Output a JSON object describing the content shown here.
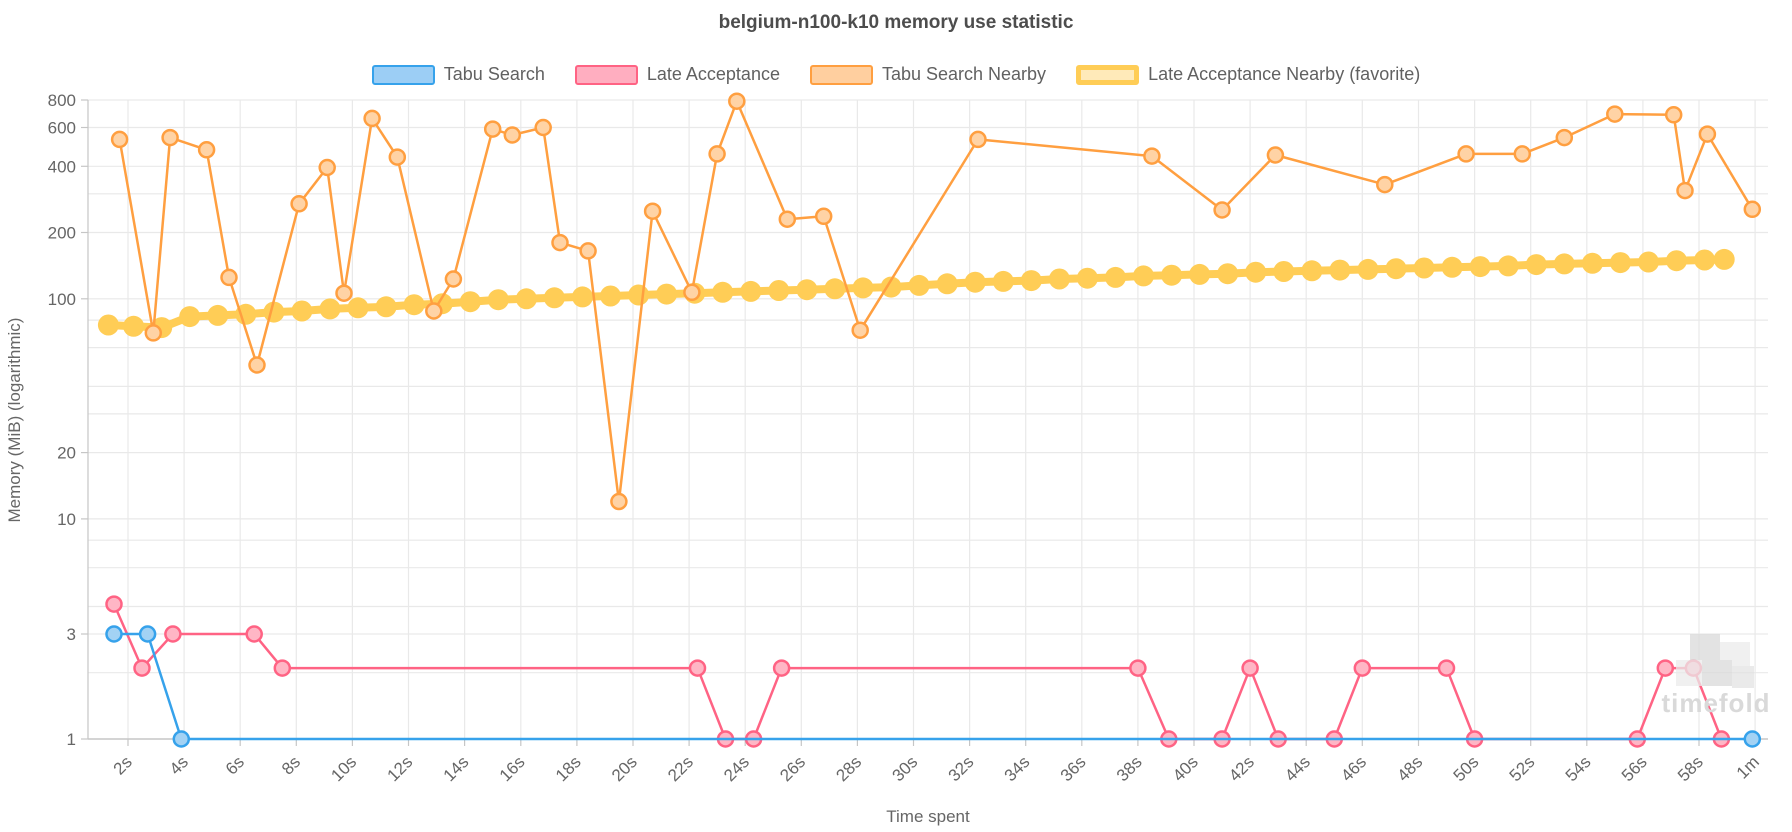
{
  "chart": {
    "title": "belgium-n100-k10 memory use statistic",
    "xlabel": "Time spent",
    "ylabel": "Memory (MiB) (logarithmic)",
    "watermark": "timefold"
  },
  "colors": {
    "grid": "#e9e9e9",
    "axis": "#c6c6c6",
    "tick_text": "#666666",
    "title_text": "#4d4d4d",
    "watermark_dark": "#d8d8d8",
    "watermark_light": "#e9e9e9"
  },
  "chart_data": {
    "type": "line",
    "title": "belgium-n100-k10 memory use statistic",
    "xlabel": "Time spent",
    "ylabel": "Memory (MiB) (logarithmic)",
    "y_scale": "logarithmic",
    "legend_position": "top",
    "x_range": [
      0.574,
      60.46
    ],
    "y_range": [
      1,
      800
    ],
    "x_ticks": [
      {
        "t": 2,
        "label": "2s"
      },
      {
        "t": 4,
        "label": "4s"
      },
      {
        "t": 6,
        "label": "6s"
      },
      {
        "t": 8,
        "label": "8s"
      },
      {
        "t": 10,
        "label": "10s"
      },
      {
        "t": 12,
        "label": "12s"
      },
      {
        "t": 14,
        "label": "14s"
      },
      {
        "t": 16,
        "label": "16s"
      },
      {
        "t": 18,
        "label": "18s"
      },
      {
        "t": 20,
        "label": "20s"
      },
      {
        "t": 22,
        "label": "22s"
      },
      {
        "t": 24,
        "label": "24s"
      },
      {
        "t": 26,
        "label": "26s"
      },
      {
        "t": 28,
        "label": "28s"
      },
      {
        "t": 30,
        "label": "30s"
      },
      {
        "t": 32,
        "label": "32s"
      },
      {
        "t": 34,
        "label": "34s"
      },
      {
        "t": 36,
        "label": "36s"
      },
      {
        "t": 38,
        "label": "38s"
      },
      {
        "t": 40,
        "label": "40s"
      },
      {
        "t": 42,
        "label": "42s"
      },
      {
        "t": 44,
        "label": "44s"
      },
      {
        "t": 46,
        "label": "46s"
      },
      {
        "t": 48,
        "label": "48s"
      },
      {
        "t": 50,
        "label": "50s"
      },
      {
        "t": 52,
        "label": "52s"
      },
      {
        "t": 54,
        "label": "54s"
      },
      {
        "t": 56,
        "label": "56s"
      },
      {
        "t": 58,
        "label": "58s"
      },
      {
        "t": 60,
        "label": "1m"
      }
    ],
    "y_tick_labels": [
      800,
      600,
      400,
      200,
      100,
      20,
      10,
      3,
      1
    ],
    "y_gridlines": [
      2,
      3,
      4,
      6,
      8,
      10,
      20,
      30,
      40,
      60,
      80,
      100,
      200,
      300,
      400,
      600,
      800
    ],
    "render_order": [
      3,
      2,
      1,
      0
    ],
    "series": [
      {
        "id": "tabu-search",
        "name": "Tabu Search",
        "color": "#36A2EB",
        "marker_fill": "#a3d2f4",
        "legend_fill": "#9ccef5",
        "legend_border": 2,
        "line_width": 2.5,
        "marker_radius": 7.5,
        "marker_stroke_width": 2.5,
        "points": [
          [
            1.5,
            3
          ],
          [
            2.7,
            3
          ],
          [
            3.9,
            1
          ],
          [
            59.9,
            1
          ]
        ]
      },
      {
        "id": "late-acceptance",
        "name": "Late Acceptance",
        "color": "#FF6384",
        "marker_fill": "#ffb6c5",
        "legend_fill": "#ffaec0",
        "legend_border": 2,
        "line_width": 2.5,
        "marker_radius": 7.5,
        "marker_stroke_width": 2.5,
        "points": [
          [
            1.5,
            4.1
          ],
          [
            2.5,
            2.1
          ],
          [
            3.6,
            3
          ],
          [
            6.5,
            3
          ],
          [
            7.5,
            2.1
          ],
          [
            22.3,
            2.1
          ],
          [
            23.3,
            1
          ],
          [
            24.3,
            1
          ],
          [
            25.3,
            2.1
          ],
          [
            38.0,
            2.1
          ],
          [
            39.1,
            1
          ],
          [
            41.0,
            1
          ],
          [
            42.0,
            2.1
          ],
          [
            43.0,
            1
          ],
          [
            45.0,
            1
          ],
          [
            46.0,
            2.1
          ],
          [
            49.0,
            2.1
          ],
          [
            50.0,
            1
          ],
          [
            55.8,
            1
          ],
          [
            56.8,
            2.1
          ],
          [
            57.8,
            2.1
          ],
          [
            58.8,
            1
          ]
        ]
      },
      {
        "id": "tabu-search-nearby",
        "name": "Tabu Search Nearby",
        "color": "#FF9F40",
        "marker_fill": "#ffd3a5",
        "legend_fill": "#ffcf9f",
        "legend_border": 2,
        "line_width": 2.5,
        "marker_radius": 7.5,
        "marker_stroke_width": 2.5,
        "points": [
          [
            1.7,
            530
          ],
          [
            2.9,
            70
          ],
          [
            3.5,
            540
          ],
          [
            4.8,
            475
          ],
          [
            5.6,
            125
          ],
          [
            6.6,
            50
          ],
          [
            8.1,
            270
          ],
          [
            9.1,
            395
          ],
          [
            9.7,
            106
          ],
          [
            10.7,
            660
          ],
          [
            11.6,
            440
          ],
          [
            12.9,
            88
          ],
          [
            13.6,
            123
          ],
          [
            15.0,
            590
          ],
          [
            15.7,
            555
          ],
          [
            16.8,
            600
          ],
          [
            17.4,
            180
          ],
          [
            18.4,
            165
          ],
          [
            19.5,
            12
          ],
          [
            20.7,
            250
          ],
          [
            22.1,
            107
          ],
          [
            23.0,
            455
          ],
          [
            23.7,
            790
          ],
          [
            25.5,
            230
          ],
          [
            26.8,
            237
          ],
          [
            28.1,
            72
          ],
          [
            32.3,
            530
          ],
          [
            38.5,
            445
          ],
          [
            41.0,
            253
          ],
          [
            42.9,
            450
          ],
          [
            46.8,
            330
          ],
          [
            49.7,
            455
          ],
          [
            51.7,
            455
          ],
          [
            53.2,
            540
          ],
          [
            55.0,
            690
          ],
          [
            57.1,
            685
          ],
          [
            57.5,
            310
          ],
          [
            58.3,
            560
          ],
          [
            59.9,
            255
          ]
        ]
      },
      {
        "id": "late-acceptance-nearby",
        "name": "Late Acceptance Nearby (favorite)",
        "color": "#FFCD56",
        "marker_fill": "#FFCD56",
        "legend_fill": "#ffeab9",
        "legend_border": 5,
        "line_width": 8,
        "marker_radius": 10.5,
        "marker_stroke_width": 0,
        "points": [
          [
            1.3,
            76
          ],
          [
            2.2,
            75
          ],
          [
            3.2,
            74
          ],
          [
            4.2,
            83
          ],
          [
            5.2,
            84
          ],
          [
            6.2,
            85
          ],
          [
            7.2,
            87
          ],
          [
            8.2,
            88
          ],
          [
            9.2,
            90
          ],
          [
            10.2,
            91
          ],
          [
            11.2,
            92
          ],
          [
            12.2,
            94
          ],
          [
            13.2,
            95
          ],
          [
            14.2,
            97
          ],
          [
            15.2,
            99
          ],
          [
            16.2,
            100
          ],
          [
            17.2,
            101
          ],
          [
            18.2,
            102
          ],
          [
            19.2,
            103
          ],
          [
            20.2,
            104
          ],
          [
            21.2,
            105
          ],
          [
            22.2,
            106
          ],
          [
            23.2,
            107
          ],
          [
            24.2,
            108
          ],
          [
            25.2,
            109
          ],
          [
            26.2,
            110
          ],
          [
            27.2,
            111
          ],
          [
            28.2,
            112
          ],
          [
            29.2,
            113
          ],
          [
            30.2,
            115
          ],
          [
            31.2,
            117
          ],
          [
            32.2,
            119
          ],
          [
            33.2,
            120
          ],
          [
            34.2,
            121
          ],
          [
            35.2,
            123
          ],
          [
            36.2,
            124
          ],
          [
            37.2,
            125
          ],
          [
            38.2,
            127
          ],
          [
            39.2,
            128
          ],
          [
            40.2,
            129
          ],
          [
            41.2,
            130
          ],
          [
            42.2,
            132
          ],
          [
            43.2,
            133
          ],
          [
            44.2,
            134
          ],
          [
            45.2,
            135
          ],
          [
            46.2,
            136
          ],
          [
            47.2,
            137
          ],
          [
            48.2,
            138
          ],
          [
            49.2,
            139
          ],
          [
            50.2,
            140
          ],
          [
            51.2,
            141
          ],
          [
            52.2,
            143
          ],
          [
            53.2,
            144
          ],
          [
            54.2,
            145
          ],
          [
            55.2,
            146
          ],
          [
            56.2,
            147
          ],
          [
            57.2,
            149
          ],
          [
            58.2,
            150
          ],
          [
            58.9,
            151
          ]
        ]
      }
    ]
  }
}
